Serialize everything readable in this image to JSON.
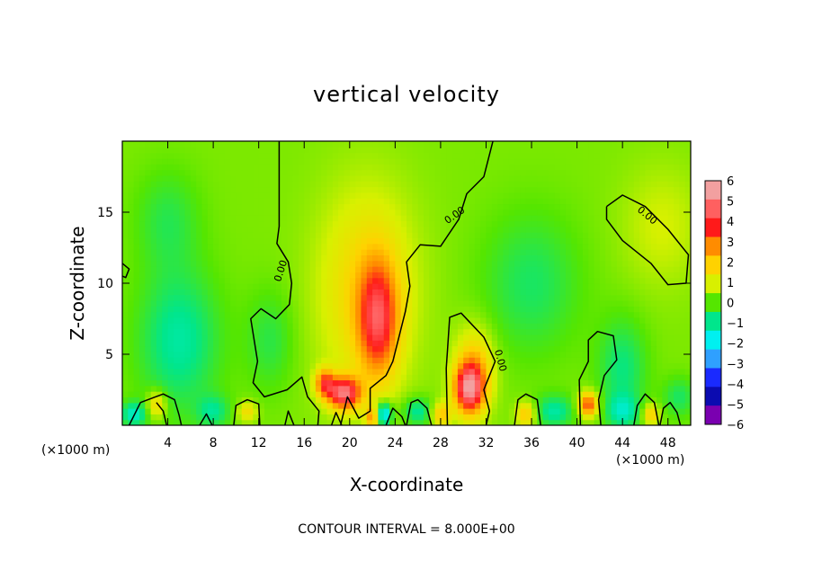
{
  "chart_data": {
    "type": "heatmap",
    "title": "vertical velocity",
    "xlabel": "X-coordinate",
    "ylabel": "Z-coordinate",
    "x_unit_label": "(×1000 m)",
    "y_unit_label": "(×1000 m)",
    "footer": "CONTOUR INTERVAL = 8.000E+00",
    "xlim": [
      0,
      50
    ],
    "ylim": [
      0,
      20
    ],
    "x_ticks": [
      "4",
      "8",
      "12",
      "16",
      "20",
      "24",
      "28",
      "32",
      "36",
      "40",
      "44",
      "48"
    ],
    "x_tick_values": [
      4,
      8,
      12,
      16,
      20,
      24,
      28,
      32,
      36,
      40,
      44,
      48
    ],
    "y_ticks": [
      "5",
      "10",
      "15"
    ],
    "y_tick_values": [
      5,
      10,
      15
    ],
    "colorbar": {
      "labels": [
        "6",
        "5",
        "4",
        "3",
        "2",
        "1",
        "0",
        "−1",
        "−2",
        "−3",
        "−4",
        "−5",
        "−6"
      ],
      "values": [
        6,
        5,
        4,
        3,
        2,
        1,
        0,
        -1,
        -2,
        -3,
        -4,
        -5,
        -6
      ],
      "colors": [
        "#f2a0a0",
        "#ff6060",
        "#ff1a1a",
        "#ff8c00",
        "#ffd200",
        "#d8f000",
        "#55e600",
        "#00e68c",
        "#00f0f0",
        "#2fa0ff",
        "#1a2aff",
        "#0b0bb0",
        "#7a00b0"
      ]
    },
    "contour_labels": [
      "0.00",
      "0.00",
      "0.00",
      "0.00"
    ],
    "background_value": 0.3,
    "features": [
      {
        "x": 22.5,
        "z": 7.5,
        "value": 3.4,
        "sx": 1.2,
        "sz": 2.8
      },
      {
        "x": 21.5,
        "z": 9.5,
        "value": 1.6,
        "sx": 3.0,
        "sz": 5.0
      },
      {
        "x": 19.5,
        "z": 2.3,
        "value": 4.8,
        "sx": 1.0,
        "sz": 0.8
      },
      {
        "x": 17.8,
        "z": 3.0,
        "value": 3.0,
        "sx": 0.6,
        "sz": 0.7
      },
      {
        "x": 30.5,
        "z": 2.6,
        "value": 4.6,
        "sx": 0.9,
        "sz": 1.2
      },
      {
        "x": 31.0,
        "z": 4.0,
        "value": 2.0,
        "sx": 1.2,
        "sz": 2.0
      },
      {
        "x": 41.0,
        "z": 1.5,
        "value": 3.5,
        "sx": 0.6,
        "sz": 0.6
      },
      {
        "x": 22.0,
        "z": 0.6,
        "value": 2.5,
        "sx": 0.4,
        "sz": 0.5
      },
      {
        "x": 5.0,
        "z": 6.0,
        "value": -1.5,
        "sx": 2.5,
        "sz": 3.5
      },
      {
        "x": 4.0,
        "z": 14.5,
        "value": -0.8,
        "sx": 2.0,
        "sz": 2.5
      },
      {
        "x": 13.0,
        "z": 6.0,
        "value": -0.8,
        "sx": 1.5,
        "sz": 2.5
      },
      {
        "x": 36.0,
        "z": 10.0,
        "value": -1.0,
        "sx": 3.0,
        "sz": 3.5
      },
      {
        "x": 44.0,
        "z": 4.0,
        "value": -1.2,
        "sx": 1.5,
        "sz": 2.5
      },
      {
        "x": 47.5,
        "z": 14.0,
        "value": 0.7,
        "sx": 2.5,
        "sz": 3.0
      },
      {
        "x": 23.0,
        "z": 0.8,
        "value": -3.0,
        "sx": 0.5,
        "sz": 0.6
      },
      {
        "x": 1.0,
        "z": 0.8,
        "value": -1.8,
        "sx": 0.8,
        "sz": 0.6
      },
      {
        "x": 8.0,
        "z": 1.0,
        "value": -1.2,
        "sx": 1.0,
        "sz": 0.8
      },
      {
        "x": 26.0,
        "z": 1.0,
        "value": -1.5,
        "sx": 1.0,
        "sz": 0.7
      },
      {
        "x": 38.0,
        "z": 1.0,
        "value": -1.5,
        "sx": 1.2,
        "sz": 0.8
      },
      {
        "x": 44.0,
        "z": 1.0,
        "value": -1.4,
        "sx": 1.0,
        "sz": 0.8
      },
      {
        "x": 49.0,
        "z": 2.0,
        "value": -1.0,
        "sx": 1.0,
        "sz": 1.0
      },
      {
        "x": 3.0,
        "z": 1.5,
        "value": 1.8,
        "sx": 0.6,
        "sz": 0.7
      },
      {
        "x": 11.0,
        "z": 1.0,
        "value": 1.5,
        "sx": 0.6,
        "sz": 0.5
      },
      {
        "x": 28.0,
        "z": 0.8,
        "value": 2.0,
        "sx": 0.6,
        "sz": 0.6
      },
      {
        "x": 35.5,
        "z": 0.8,
        "value": 2.0,
        "sx": 0.6,
        "sz": 0.6
      },
      {
        "x": 46.5,
        "z": 0.8,
        "value": 2.0,
        "sx": 0.5,
        "sz": 0.5
      }
    ],
    "contours_zero": [
      [
        [
          13.8,
          20
        ],
        [
          13.8,
          14
        ],
        [
          13.6,
          12.8
        ],
        [
          14.6,
          11.5
        ],
        [
          14.9,
          10.0
        ],
        [
          14.7,
          8.5
        ],
        [
          13.5,
          7.5
        ],
        [
          12.2,
          8.2
        ],
        [
          11.3,
          7.5
        ],
        [
          11.9,
          4.5
        ],
        [
          11.5,
          3.0
        ],
        [
          12.5,
          2.0
        ],
        [
          14.5,
          2.5
        ],
        [
          15.8,
          3.4
        ],
        [
          16.3,
          2.0
        ],
        [
          17.3,
          1.0
        ],
        [
          17.2,
          0
        ]
      ],
      [
        [
          32.6,
          20
        ],
        [
          31.8,
          17.5
        ],
        [
          30.3,
          16.3
        ],
        [
          29.6,
          14.5
        ],
        [
          28.0,
          12.6
        ],
        [
          26.2,
          12.7
        ],
        [
          25.0,
          11.5
        ],
        [
          25.3,
          9.8
        ],
        [
          24.9,
          8.0
        ],
        [
          23.8,
          4.5
        ],
        [
          23.2,
          3.5
        ],
        [
          21.8,
          2.6
        ],
        [
          21.8,
          1.0
        ],
        [
          20.8,
          0.5
        ],
        [
          19.8,
          2.0
        ],
        [
          19.2,
          0
        ]
      ],
      [
        [
          0,
          11.4
        ],
        [
          0.6,
          11.0
        ],
        [
          0.3,
          10.4
        ],
        [
          0,
          10.5
        ]
      ],
      [
        [
          42.6,
          15.4
        ],
        [
          44.0,
          16.2
        ],
        [
          46.0,
          15.4
        ],
        [
          48.0,
          13.8
        ],
        [
          49.8,
          12.0
        ],
        [
          49.6,
          10.0
        ],
        [
          48.0,
          9.9
        ],
        [
          46.5,
          11.4
        ],
        [
          44.0,
          13.0
        ],
        [
          42.6,
          14.5
        ],
        [
          42.6,
          15.4
        ]
      ],
      [
        [
          28.6,
          0
        ],
        [
          28.5,
          4.0
        ],
        [
          28.8,
          7.6
        ],
        [
          29.8,
          7.9
        ],
        [
          31.8,
          6.2
        ],
        [
          32.8,
          4.5
        ],
        [
          32.3,
          3.5
        ],
        [
          31.8,
          2.5
        ],
        [
          32.3,
          1.0
        ],
        [
          32.0,
          0
        ]
      ],
      [
        [
          40.3,
          0
        ],
        [
          40.2,
          3.2
        ],
        [
          41.0,
          4.5
        ],
        [
          41.0,
          6.0
        ],
        [
          41.8,
          6.6
        ],
        [
          43.2,
          6.3
        ],
        [
          43.5,
          4.6
        ],
        [
          42.4,
          3.5
        ],
        [
          41.9,
          1.8
        ],
        [
          42.1,
          0
        ]
      ],
      [
        [
          0.6,
          0
        ],
        [
          1.6,
          1.6
        ],
        [
          3.6,
          2.2
        ],
        [
          4.6,
          1.8
        ],
        [
          5.0,
          0.7
        ],
        [
          5.2,
          0
        ]
      ],
      [
        [
          3.9,
          0
        ],
        [
          3.6,
          1.0
        ],
        [
          3.0,
          1.6
        ]
      ],
      [
        [
          9.8,
          0
        ],
        [
          10.0,
          1.4
        ],
        [
          11.0,
          1.8
        ],
        [
          12.0,
          1.5
        ],
        [
          12.1,
          0
        ]
      ],
      [
        [
          6.8,
          0
        ],
        [
          7.4,
          0.8
        ],
        [
          7.9,
          0
        ]
      ],
      [
        [
          25.0,
          0
        ],
        [
          25.4,
          1.6
        ],
        [
          26.0,
          1.8
        ],
        [
          26.8,
          1.2
        ],
        [
          27.2,
          0
        ]
      ],
      [
        [
          34.5,
          0
        ],
        [
          34.8,
          1.8
        ],
        [
          35.5,
          2.2
        ],
        [
          36.5,
          1.8
        ],
        [
          36.8,
          0
        ]
      ],
      [
        [
          45.0,
          0
        ],
        [
          45.3,
          1.4
        ],
        [
          46.0,
          2.2
        ],
        [
          46.8,
          1.6
        ],
        [
          47.2,
          0
        ]
      ],
      [
        [
          47.3,
          0
        ],
        [
          47.6,
          1.2
        ],
        [
          48.2,
          1.6
        ],
        [
          48.8,
          0.9
        ],
        [
          49.1,
          0
        ]
      ],
      [
        [
          14.3,
          0
        ],
        [
          14.6,
          1.0
        ],
        [
          15.1,
          0
        ]
      ],
      [
        [
          18.4,
          0
        ],
        [
          18.8,
          0.9
        ],
        [
          19.3,
          0
        ]
      ],
      [
        [
          23.2,
          0
        ],
        [
          23.8,
          1.2
        ],
        [
          24.6,
          0.6
        ],
        [
          24.9,
          0
        ]
      ]
    ]
  }
}
